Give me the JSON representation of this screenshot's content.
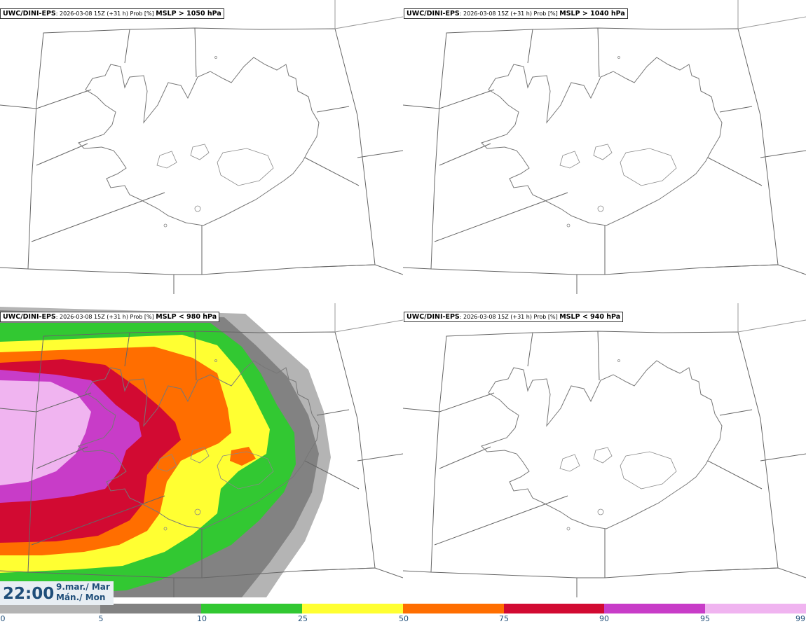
{
  "panels": [
    {
      "model": "UWC/DINI-EPS",
      "meta": ": 2026-03-08 15Z (+31 h) Prob [%] ",
      "field": "MSLP > 1050 hPa"
    },
    {
      "model": "UWC/DINI-EPS",
      "meta": ": 2026-03-08 15Z (+31 h) Prob [%] ",
      "field": "MSLP > 1040 hPa"
    },
    {
      "model": "UWC/DINI-EPS",
      "meta": ": 2026-03-08 15Z (+31 h) Prob [%] ",
      "field": "MSLP < 980 hPa"
    },
    {
      "model": "UWC/DINI-EPS",
      "meta": ": 2026-03-08 15Z (+31 h) Prob [%] ",
      "field": "MSLP < 940 hPa"
    }
  ],
  "time": {
    "clock": "22:00",
    "date_line1": "9.mar./ Mar",
    "date_line2": "Mán./ Mon"
  },
  "colorbar": {
    "labels": [
      "0",
      "5",
      "10",
      "25",
      "50",
      "75",
      "90",
      "95",
      "99"
    ],
    "colors": [
      "#ffffff",
      "#b4b4b4",
      "#828282",
      "#32c832",
      "#ffff32",
      "#ff6e00",
      "#d20a32",
      "#c83cc8",
      "#f0b4f0"
    ]
  }
}
